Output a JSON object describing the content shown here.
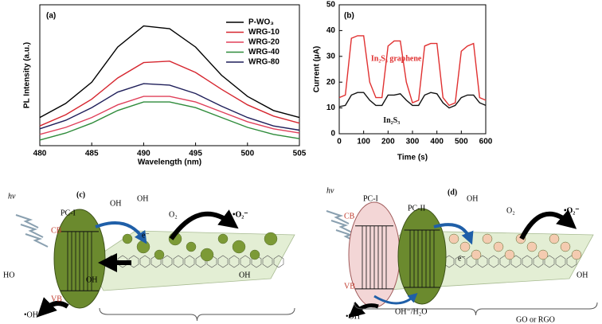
{
  "chart_data": [
    {
      "type": "line",
      "label": "(a)",
      "xlabel": "Wavelength (nm)",
      "ylabel": "PL Intensity (a.u.)",
      "x": [
        480,
        482.5,
        485,
        487.5,
        490,
        492.5,
        495,
        497.5,
        500,
        502.5,
        505
      ],
      "xlim": [
        480,
        505
      ],
      "xticks": [
        480,
        485,
        490,
        495,
        500,
        505
      ],
      "ylim": [
        0,
        100
      ],
      "legend": "upper right",
      "series": [
        {
          "name": "P-WO₃",
          "color": "#000000",
          "values": [
            20,
            30,
            45,
            70,
            85,
            83,
            70,
            50,
            35,
            25,
            20
          ]
        },
        {
          "name": "WRG-10",
          "color": "#d6262f",
          "values": [
            14,
            22,
            33,
            48,
            59,
            60,
            52,
            40,
            29,
            21,
            16
          ]
        },
        {
          "name": "WRG-20",
          "color": "#e0405a",
          "values": [
            8,
            13,
            20,
            29,
            35,
            35,
            31,
            24,
            17,
            12,
            9
          ]
        },
        {
          "name": "WRG-40",
          "color": "#2e8b3a",
          "values": [
            4,
            9,
            16,
            25,
            31,
            31,
            27,
            20,
            13,
            8,
            5
          ]
        },
        {
          "name": "WRG-80",
          "color": "#1f1f5a",
          "values": [
            12,
            18,
            27,
            38,
            44,
            43,
            37,
            28,
            20,
            14,
            11
          ]
        }
      ]
    },
    {
      "type": "line",
      "label": "(b)",
      "xlabel": "Time (s)",
      "ylabel": "Current (µA)",
      "x": [
        0,
        25,
        50,
        75,
        100,
        125,
        150,
        175,
        200,
        225,
        250,
        275,
        300,
        325,
        350,
        375,
        400,
        425,
        450,
        475,
        500,
        525,
        550,
        575,
        600
      ],
      "xlim": [
        0,
        600
      ],
      "xticks": [
        0,
        100,
        200,
        300,
        400,
        500,
        600
      ],
      "ylim": [
        0,
        50
      ],
      "yticks": [
        0,
        10,
        20,
        30,
        40,
        50
      ],
      "series": [
        {
          "name": "In₂S₃ graphene",
          "color": "#e03030",
          "values": [
            14,
            15,
            37,
            38,
            38,
            20,
            14,
            14,
            34,
            36,
            36,
            20,
            12,
            13,
            34,
            35,
            35,
            14,
            11,
            12,
            32,
            34,
            35,
            14,
            13
          ]
        },
        {
          "name": "In₂S₃",
          "color": "#111111",
          "values": [
            10.5,
            11,
            15,
            16,
            16,
            13,
            11,
            11,
            15,
            15,
            15.5,
            13,
            11,
            11,
            15,
            16,
            15.5,
            12,
            10,
            11,
            14,
            15,
            15,
            12,
            11
          ]
        }
      ]
    }
  ],
  "diagrams": [
    {
      "labels": [
        "hv",
        "(c)",
        "PC-I",
        "CB",
        "VB",
        "O₂",
        "•O₂⁻",
        "e⁻",
        "•OH",
        "OH",
        "OH",
        "OH",
        "HO",
        "OH"
      ]
    },
    {
      "labels": [
        "hv",
        "(d)",
        "PC-I",
        "PC-II",
        "CB",
        "VB",
        "O₂",
        "•O₂⁻",
        "e⁻",
        "•OH",
        "OH⁻/H₂O",
        "GO or RGO",
        "OH",
        "OH"
      ]
    }
  ]
}
